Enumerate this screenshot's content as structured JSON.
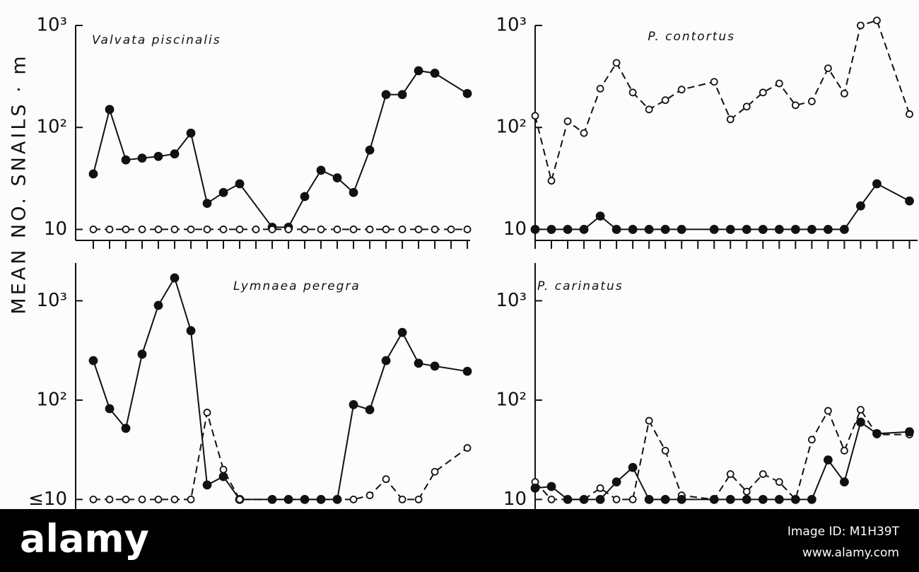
{
  "y_axis_label": "MEAN NO. SNAILS · m",
  "watermark": {
    "brand": "alamy",
    "image_id": "Image ID: M1H39T",
    "url": "www.alamy.com"
  },
  "chart_data": [
    {
      "type": "line",
      "title": "Valvata piscinalis",
      "log_y": true,
      "xlim": [
        -1.087,
        23.17
      ],
      "ylim": [
        7.8,
        1000
      ],
      "xticks": [
        0,
        1,
        2,
        3,
        4,
        5,
        6,
        7,
        8,
        9,
        10,
        11,
        12,
        13,
        14,
        15,
        16,
        17,
        18,
        19,
        20,
        21,
        22,
        23
      ],
      "yticks": [
        {
          "value": 10,
          "label": "10"
        },
        {
          "value": 100,
          "label": "10²"
        },
        {
          "value": 1000,
          "label": "10³"
        }
      ],
      "series": [
        {
          "color": "#111111",
          "dash": false,
          "marker": "filled",
          "x": [
            0,
            1,
            2,
            3,
            4,
            5,
            6,
            7,
            8,
            9,
            11,
            12,
            13,
            14,
            15,
            16,
            17,
            18,
            19,
            20,
            21,
            23
          ],
          "values": [
            35,
            150,
            48,
            50,
            52,
            55,
            88,
            18,
            23,
            28,
            10.5,
            10.5,
            21,
            38,
            32,
            23,
            60,
            210,
            210,
            360,
            340,
            215
          ]
        },
        {
          "color": "#111111",
          "dash": true,
          "marker": "open",
          "x": [
            0,
            1,
            2,
            3,
            4,
            5,
            6,
            7,
            8,
            9,
            10,
            11,
            12,
            13,
            14,
            15,
            16,
            17,
            18,
            19,
            20,
            21,
            22,
            23
          ],
          "values": [
            10,
            10,
            10,
            10,
            10,
            10,
            10,
            10,
            10,
            10,
            10,
            10,
            10,
            10,
            10,
            10,
            10,
            10,
            10,
            10,
            10,
            10,
            10,
            10
          ]
        }
      ]
    },
    {
      "type": "line",
      "title": "P. contortus",
      "log_y": true,
      "xlim": [
        0,
        23.5
      ],
      "ylim": [
        7.8,
        1000
      ],
      "xticks": [
        0,
        1,
        2,
        3,
        4,
        5,
        6,
        7,
        8,
        9,
        10,
        11,
        12,
        13,
        14,
        15,
        16,
        17,
        18,
        19,
        20,
        21,
        22,
        23
      ],
      "yticks": [
        {
          "value": 10,
          "label": "10"
        },
        {
          "value": 100,
          "label": "10²"
        },
        {
          "value": 1000,
          "label": "10³"
        }
      ],
      "series": [
        {
          "color": "#111111",
          "dash": true,
          "marker": "open",
          "x": [
            0,
            1,
            2,
            3,
            4,
            5,
            6,
            7,
            8,
            9,
            11,
            12,
            13,
            14,
            15,
            16,
            17,
            18,
            19,
            20,
            21,
            23
          ],
          "values": [
            130,
            30,
            115,
            88,
            240,
            430,
            220,
            150,
            185,
            235,
            280,
            120,
            160,
            220,
            270,
            165,
            180,
            380,
            215,
            1000,
            1120,
            135
          ]
        },
        {
          "color": "#111111",
          "dash": false,
          "marker": "filled",
          "x": [
            0,
            1,
            2,
            3,
            4,
            5,
            6,
            7,
            8,
            9,
            11,
            12,
            13,
            14,
            15,
            16,
            17,
            18,
            19,
            20,
            21,
            23
          ],
          "values": [
            10,
            10,
            10,
            10,
            13.5,
            10,
            10,
            10,
            10,
            10,
            10,
            10,
            10,
            10,
            10,
            10,
            10,
            10,
            10,
            17,
            28,
            19
          ]
        }
      ]
    },
    {
      "type": "line",
      "title": "Lymnaea peregra",
      "log_y": true,
      "xlim": [
        -1.087,
        23.17
      ],
      "ylim": [
        8,
        2400
      ],
      "yticks": [
        {
          "value": 10,
          "label": "≤10"
        },
        {
          "value": 100,
          "label": "10²"
        },
        {
          "value": 1000,
          "label": "10³"
        }
      ],
      "series": [
        {
          "color": "#111111",
          "dash": false,
          "marker": "filled",
          "x": [
            0,
            1,
            2,
            3,
            4,
            5,
            6,
            7,
            8,
            9,
            11,
            12,
            13,
            14,
            15,
            16,
            17,
            18,
            19,
            20,
            21,
            23
          ],
          "values": [
            250,
            82,
            52,
            290,
            900,
            1700,
            500,
            14,
            17,
            10,
            10,
            10,
            10,
            10,
            10,
            90,
            80,
            250,
            480,
            235,
            220,
            195
          ]
        },
        {
          "color": "#111111",
          "dash": true,
          "marker": "open",
          "x": [
            0,
            1,
            2,
            3,
            4,
            5,
            6,
            7,
            8,
            9,
            16,
            17,
            18,
            19,
            20,
            21,
            23
          ],
          "values": [
            10,
            10,
            10,
            10,
            10,
            10,
            10,
            75,
            20,
            10,
            10,
            11,
            16,
            10,
            10,
            19,
            33
          ]
        }
      ]
    },
    {
      "type": "line",
      "title": "P. carinatus",
      "log_y": true,
      "xlim": [
        0,
        23.5
      ],
      "ylim": [
        8,
        2400
      ],
      "yticks": [
        {
          "value": 10,
          "label": "10"
        },
        {
          "value": 100,
          "label": "10²"
        },
        {
          "value": 1000,
          "label": "10³"
        }
      ],
      "series": [
        {
          "color": "#111111",
          "dash": true,
          "marker": "open",
          "x": [
            0,
            1,
            2,
            3,
            4,
            5,
            6,
            7,
            8,
            9,
            11,
            12,
            13,
            14,
            15,
            16,
            17,
            18,
            19,
            20,
            21,
            23
          ],
          "values": [
            15,
            10,
            10,
            10,
            13,
            10,
            10,
            62,
            31,
            11,
            10,
            18,
            12,
            18,
            15,
            10,
            40,
            78,
            31,
            80,
            45,
            45
          ]
        },
        {
          "color": "#111111",
          "dash": false,
          "marker": "filled",
          "x": [
            0,
            1,
            2,
            3,
            4,
            5,
            6,
            7,
            8,
            9,
            11,
            12,
            13,
            14,
            15,
            16,
            17,
            18,
            19,
            20,
            21,
            23
          ],
          "values": [
            13,
            13.5,
            10,
            10,
            10,
            15,
            21,
            10,
            10,
            10,
            10,
            10,
            10,
            10,
            10,
            10,
            10,
            25,
            15,
            60,
            46,
            48
          ]
        }
      ]
    }
  ]
}
